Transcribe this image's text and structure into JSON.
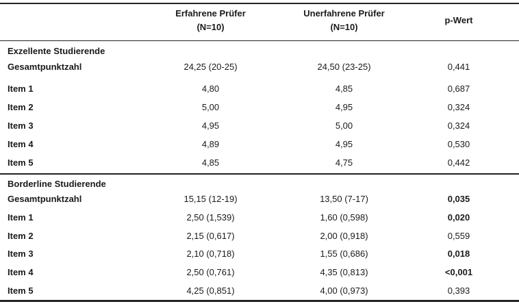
{
  "header": {
    "col1_line1": "Erfahrene Prüfer",
    "col1_line2": "(N=10)",
    "col2_line1": "Unerfahrene Prüfer",
    "col2_line2": "(N=10)",
    "col3": "p-Wert"
  },
  "section1": {
    "title": "Exzellente Studierende",
    "rows": [
      {
        "label": "Gesamtpunktzahl",
        "v1": "24,25 (20-25)",
        "v2": "24,50 (23-25)",
        "p": "0,441"
      },
      {
        "label": "Item 1",
        "v1": "4,80",
        "v2": "4,85",
        "p": "0,687"
      },
      {
        "label": "Item 2",
        "v1": "5,00",
        "v2": "4,95",
        "p": "0,324"
      },
      {
        "label": "Item 3",
        "v1": "4,95",
        "v2": "5,00",
        "p": "0,324"
      },
      {
        "label": "Item 4",
        "v1": "4,89",
        "v2": "4,95",
        "p": "0,530"
      },
      {
        "label": "Item 5",
        "v1": "4,85",
        "v2": "4,75",
        "p": "0,442"
      }
    ]
  },
  "section2": {
    "title": "Borderline Studierende",
    "rows": [
      {
        "label": "Gesamtpunktzahl",
        "v1": "15,15 (12-19)",
        "v2": "13,50 (7-17)",
        "p": "0,035"
      },
      {
        "label": "Item 1",
        "v1": "2,50 (1,539)",
        "v2": "1,60 (0,598)",
        "p": "0,020"
      },
      {
        "label": "Item 2",
        "v1": "2,15 (0,617)",
        "v2": "2,00 (0,918)",
        "p": "0,559"
      },
      {
        "label": "Item 3",
        "v1": "2,10 (0,718)",
        "v2": "1,55 (0,686)",
        "p": "0,018"
      },
      {
        "label": "Item 4",
        "v1": "2,50 (0,761)",
        "v2": "4,35 (0,813)",
        "p": "<0,001"
      },
      {
        "label": "Item 5",
        "v1": "4,25 (0,851)",
        "v2": "4,00 (0,973)",
        "p": "0,393"
      }
    ]
  }
}
